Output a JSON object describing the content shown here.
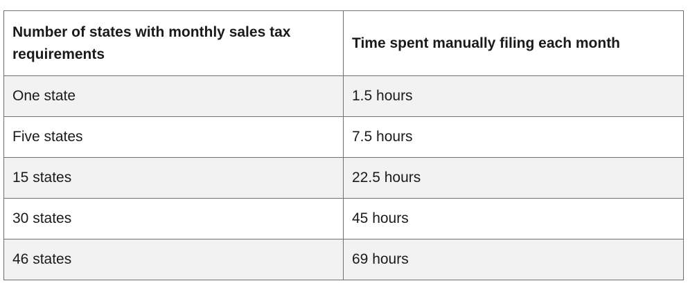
{
  "table": {
    "headers": [
      "Number of states with monthly sales tax requirements",
      "Time spent manually filing each month"
    ],
    "rows": [
      [
        "One state",
        "1.5 hours"
      ],
      [
        "Five states",
        "7.5 hours"
      ],
      [
        "15 states",
        "22.5 hours"
      ],
      [
        "30 states",
        "45 hours"
      ],
      [
        "46 states",
        "69 hours"
      ]
    ]
  }
}
